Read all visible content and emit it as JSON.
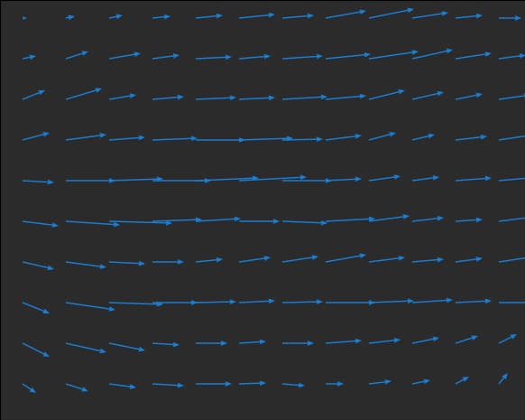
{
  "chart_data": {
    "type": "quiver",
    "color": "#1a7fd4",
    "tick_labels": false,
    "xlim": [
      0,
      582
    ],
    "ylim": [
      465,
      0
    ],
    "x": [
      25,
      73,
      121,
      169,
      217,
      265,
      313,
      361,
      409,
      457,
      505,
      553
    ],
    "y": [
      20,
      65,
      110,
      155,
      200,
      245,
      290,
      335,
      380,
      425
    ],
    "u": [
      [
        5,
        10,
        15,
        20,
        30,
        40,
        35,
        45,
        50,
        40,
        30,
        25
      ],
      [
        15,
        25,
        35,
        30,
        40,
        35,
        45,
        50,
        55,
        45,
        40,
        30
      ],
      [
        25,
        40,
        30,
        35,
        45,
        40,
        50,
        45,
        40,
        35,
        30,
        35
      ],
      [
        30,
        45,
        40,
        50,
        55,
        60,
        45,
        40,
        30,
        25,
        35,
        40
      ],
      [
        35,
        55,
        60,
        65,
        70,
        75,
        55,
        40,
        35,
        30,
        40,
        45
      ],
      [
        40,
        60,
        70,
        55,
        50,
        45,
        50,
        55,
        45,
        35,
        30,
        40
      ],
      [
        35,
        45,
        40,
        35,
        30,
        35,
        40,
        45,
        40,
        35,
        30,
        40
      ],
      [
        30,
        55,
        60,
        50,
        45,
        40,
        45,
        55,
        50,
        45,
        40,
        45
      ],
      [
        30,
        45,
        40,
        30,
        35,
        30,
        35,
        40,
        35,
        30,
        25,
        20
      ],
      [
        15,
        25,
        30,
        35,
        40,
        30,
        25,
        20,
        25,
        20,
        15,
        10
      ]
    ],
    "v": [
      [
        0,
        -2,
        -3,
        -2,
        -3,
        -4,
        -3,
        -8,
        -10,
        -6,
        -3,
        0
      ],
      [
        -3,
        -8,
        -6,
        -4,
        -2,
        -3,
        -3,
        -5,
        -8,
        -10,
        -6,
        -4
      ],
      [
        -10,
        -12,
        -5,
        -3,
        -2,
        -2,
        -3,
        -4,
        -10,
        -8,
        -6,
        -5
      ],
      [
        -8,
        -6,
        -3,
        -2,
        0,
        -2,
        -1,
        -5,
        -8,
        -6,
        -4,
        -6
      ],
      [
        2,
        0,
        -2,
        0,
        -3,
        -4,
        0,
        -2,
        -5,
        -4,
        -3,
        -4
      ],
      [
        5,
        4,
        2,
        -2,
        -3,
        0,
        2,
        -3,
        -6,
        -4,
        -2,
        -5
      ],
      [
        8,
        6,
        2,
        0,
        -3,
        -5,
        -6,
        -8,
        -5,
        -3,
        -4,
        -6
      ],
      [
        12,
        8,
        2,
        0,
        -1,
        -2,
        -1,
        0,
        -2,
        -3,
        -2,
        0
      ],
      [
        15,
        10,
        8,
        2,
        0,
        -2,
        0,
        -3,
        -4,
        -6,
        -8,
        -10
      ],
      [
        10,
        8,
        4,
        2,
        0,
        -1,
        2,
        0,
        -3,
        -4,
        -8,
        -12
      ]
    ]
  }
}
